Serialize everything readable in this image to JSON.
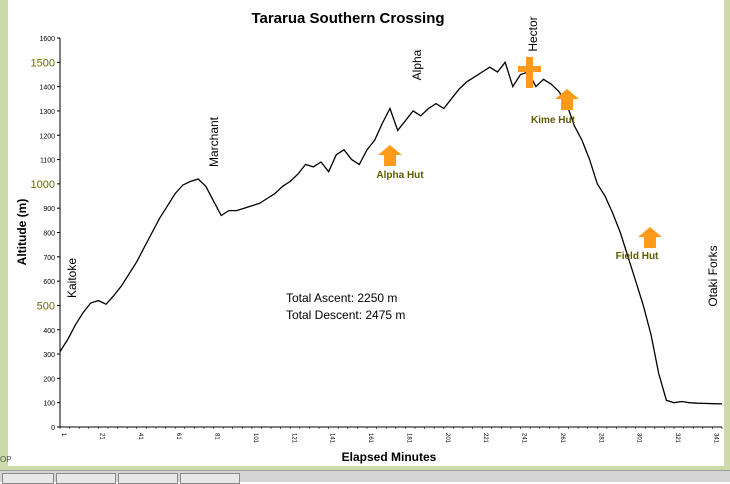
{
  "corner_label": "OP",
  "chart_data": {
    "type": "line",
    "title": "Tararua Southern Crossing",
    "xlabel": "Elapsed Minutes",
    "ylabel": "Altitude (m)",
    "xlim": [
      1,
      346
    ],
    "ylim": [
      0,
      1600
    ],
    "x_ticks": [
      1,
      21,
      41,
      61,
      81,
      101,
      121,
      141,
      161,
      181,
      201,
      221,
      241,
      261,
      281,
      301,
      321,
      341
    ],
    "y_ticks": [
      0,
      100,
      200,
      300,
      400,
      500,
      600,
      700,
      800,
      900,
      1000,
      1100,
      1200,
      1300,
      1400,
      1500,
      1600
    ],
    "y_tick_labels": [
      "0",
      "100",
      "200",
      "300",
      "400",
      "500",
      "600",
      "700",
      "800",
      "900",
      "1000",
      "1100",
      "1200",
      "1300",
      "1400",
      "1500",
      "1600"
    ],
    "emphasized_y_ticks": [
      500,
      1000,
      1500
    ],
    "grid": false,
    "series": [
      {
        "x": [
          1,
          5,
          9,
          13,
          17,
          21,
          25,
          29,
          33,
          37,
          41,
          45,
          49,
          53,
          57,
          61,
          65,
          69,
          73,
          77,
          81,
          85,
          89,
          93,
          97,
          101,
          105,
          109,
          113,
          117,
          121,
          125,
          129,
          133,
          137,
          141,
          145,
          149,
          153,
          157,
          161,
          165,
          169,
          173,
          177,
          181,
          185,
          189,
          193,
          197,
          201,
          205,
          209,
          213,
          217,
          221,
          225,
          229,
          233,
          237,
          241,
          245,
          249,
          253,
          257,
          261,
          265,
          269,
          273,
          277,
          281,
          285,
          289,
          293,
          297,
          301,
          305,
          309,
          313,
          317,
          321,
          325,
          329,
          333,
          337,
          341,
          346
        ],
        "y": [
          310,
          360,
          420,
          470,
          510,
          520,
          505,
          540,
          580,
          630,
          680,
          740,
          800,
          860,
          910,
          960,
          995,
          1010,
          1020,
          990,
          930,
          870,
          890,
          890,
          900,
          910,
          920,
          940,
          960,
          990,
          1010,
          1040,
          1080,
          1070,
          1090,
          1050,
          1120,
          1140,
          1100,
          1080,
          1140,
          1180,
          1250,
          1310,
          1220,
          1260,
          1300,
          1280,
          1310,
          1330,
          1310,
          1350,
          1390,
          1420,
          1440,
          1460,
          1480,
          1460,
          1500,
          1400,
          1450,
          1460,
          1400,
          1430,
          1410,
          1380,
          1330,
          1240,
          1180,
          1100,
          1000,
          950,
          880,
          800,
          700,
          600,
          500,
          380,
          220,
          110,
          100,
          105,
          100,
          98,
          97,
          96,
          95
        ]
      }
    ],
    "annotations": {
      "peaks": [
        "Kaitoke",
        "Marchant",
        "Alpha",
        "Hector",
        "Otaki Forks"
      ],
      "huts": [
        "Alpha Hut",
        "Kime Hut",
        "Field Hut"
      ],
      "stats": [
        "Total Ascent: 2250 m",
        "Total Descent: 2475 m"
      ]
    },
    "colors": {
      "line": "#000000",
      "hut_marker": "#ff9a1a",
      "hut_label": "#5c5c00",
      "emphasized_tick": "#6a6a00",
      "frame": "#ccd9a8"
    }
  }
}
